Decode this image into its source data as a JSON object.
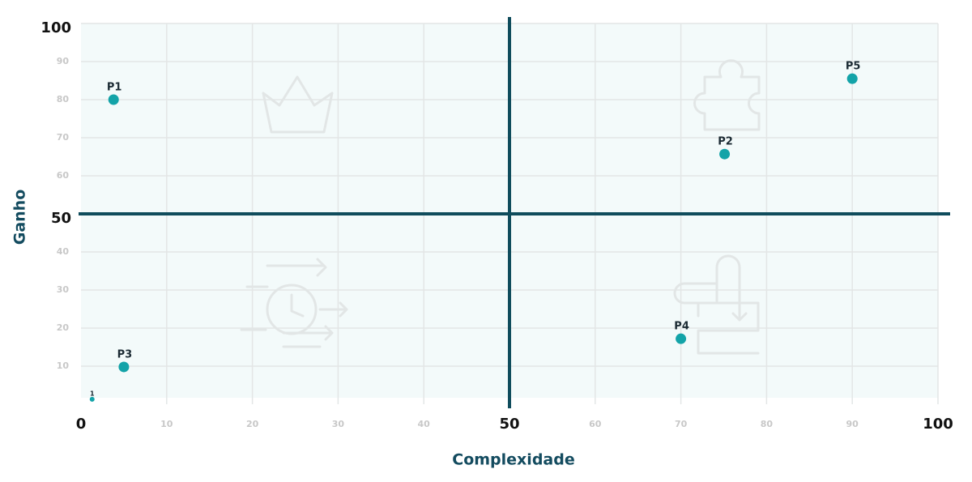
{
  "chart_data": {
    "type": "scatter",
    "x_label": "Complexidade",
    "y_label": "Ganho",
    "xlim": [
      0,
      100
    ],
    "ylim": [
      0,
      100
    ],
    "xticks": [
      0,
      10,
      20,
      30,
      40,
      50,
      60,
      70,
      80,
      90,
      100
    ],
    "yticks": [
      10,
      20,
      30,
      40,
      50,
      60,
      70,
      80,
      90,
      100
    ],
    "grid": true,
    "quadrant_lines": {
      "x": 50,
      "y": 50,
      "color": "#0f4c5c"
    },
    "color": "#13a3a8",
    "labels": [
      "P1",
      "P2",
      "P3",
      "P4",
      "P5"
    ],
    "x": [
      3.8,
      75.1,
      5.0,
      70.0,
      90.0
    ],
    "y": [
      80,
      65.7,
      9.8,
      17.2,
      85.5
    ],
    "minor_points": {
      "labels": [
        "1"
      ],
      "x": [
        1.3
      ],
      "y": [
        1.3
      ]
    }
  }
}
